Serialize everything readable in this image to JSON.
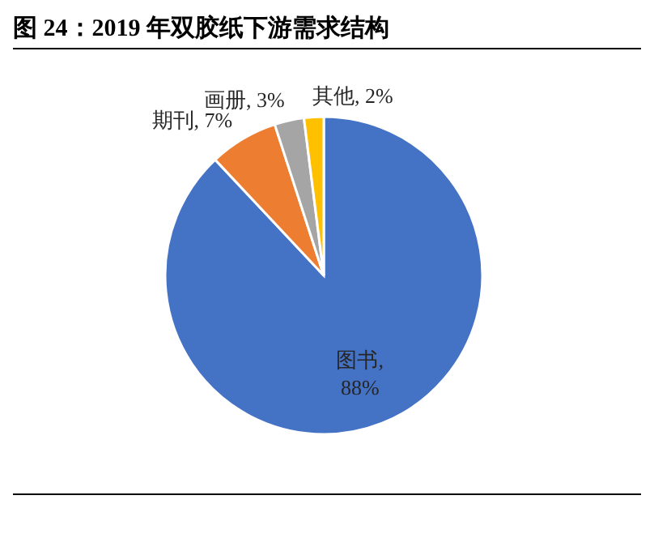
{
  "chart_data": {
    "type": "pie",
    "title": "图 24：2019 年双胶纸下游需求结构",
    "categories": [
      "图书",
      "期刊",
      "画册",
      "其他"
    ],
    "values": [
      88,
      7,
      3,
      2
    ],
    "colors": [
      "#4472c4",
      "#ed7d31",
      "#a5a5a5",
      "#ffc000"
    ],
    "value_labels": [
      ",\n88%",
      ", 7%",
      ", 3%",
      ", 2%"
    ]
  }
}
